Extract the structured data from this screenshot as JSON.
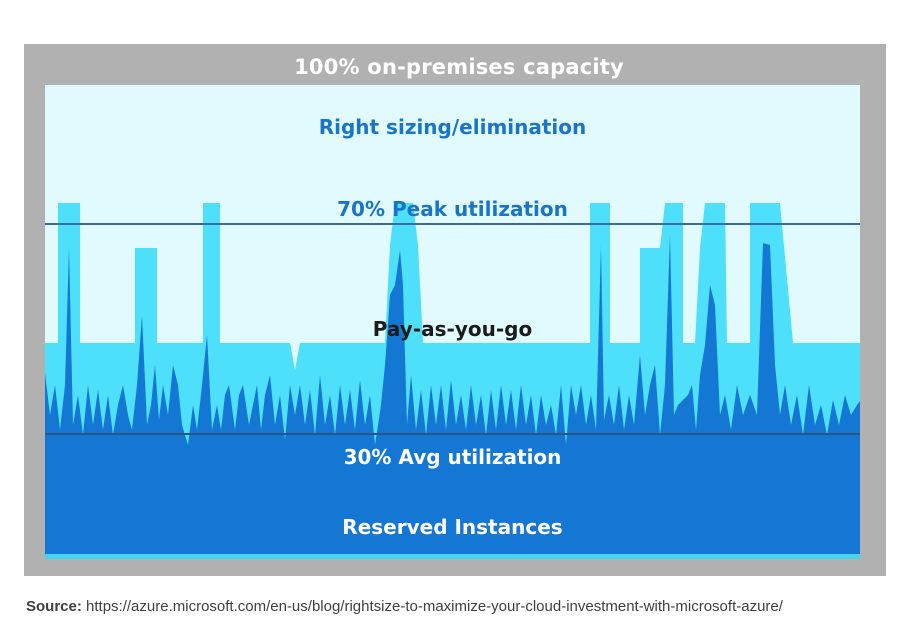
{
  "frame": {
    "title": "100% on-premises capacity"
  },
  "regions": {
    "right_sizing": "Right sizing/elimination",
    "peak": "70% Peak utilization",
    "pay_as_you_go": "Pay-as-you-go",
    "avg": "30% Avg utilization",
    "reserved": "Reserved Instances"
  },
  "source": {
    "label": "Source:",
    "url": "https://azure.microsoft.com/en-us/blog/rightsize-to-maximize-your-cloud-investment-with-microsoft-azure/"
  },
  "colors": {
    "outer_frame": "#b1b1b1",
    "capacity_area": "#e0fafd",
    "pay_as_you_go": "#4ee0fb",
    "reserved": "#1477d4",
    "threshold_line": "#3b6aa6"
  }
}
